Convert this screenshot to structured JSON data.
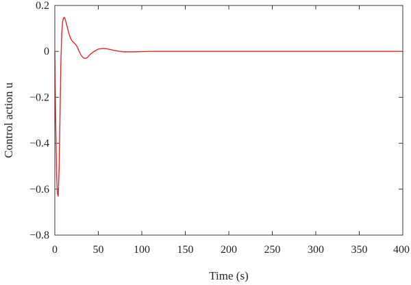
{
  "chart_data": {
    "type": "line",
    "title": "",
    "xlabel": "Time (s)",
    "ylabel": "Control action u",
    "xlim": [
      0,
      400
    ],
    "ylim": [
      -0.8,
      0.2
    ],
    "grid": false,
    "legend": "none",
    "x_ticks": [
      0,
      50,
      100,
      150,
      200,
      250,
      300,
      350,
      400
    ],
    "x_tick_labels": [
      "0",
      "50",
      "100",
      "150",
      "200",
      "250",
      "300",
      "350",
      "400"
    ],
    "y_ticks": [
      0.2,
      0,
      -0.2,
      -0.4,
      -0.6,
      -0.8
    ],
    "y_tick_labels": [
      "0.2",
      "0",
      "−0.2",
      "−0.4",
      "−0.6",
      "−0.8"
    ],
    "series": [
      {
        "color": "#e3262b",
        "x": [
          0,
          1,
          2,
          3,
          4,
          5,
          6,
          7,
          8,
          9,
          10,
          11,
          12,
          14,
          16,
          18,
          20,
          22,
          24,
          26,
          28,
          30,
          32,
          34,
          36,
          38,
          40,
          45,
          50,
          55,
          60,
          65,
          70,
          75,
          80,
          90,
          100,
          110,
          120,
          140,
          160,
          200,
          250,
          300,
          350,
          400
        ],
        "y": [
          0.0,
          -0.3,
          -0.53,
          -0.62,
          -0.63,
          -0.5,
          -0.28,
          -0.05,
          0.08,
          0.13,
          0.145,
          0.148,
          0.14,
          0.11,
          0.08,
          0.058,
          0.045,
          0.038,
          0.03,
          0.018,
          0.0,
          -0.015,
          -0.025,
          -0.03,
          -0.03,
          -0.025,
          -0.015,
          0.0,
          0.01,
          0.013,
          0.011,
          0.007,
          0.003,
          0.0,
          -0.002,
          -0.002,
          -0.001,
          0.0,
          0.0,
          0.0,
          0.0,
          0.0,
          0.0,
          0.0,
          0.0,
          0.0
        ]
      }
    ]
  }
}
